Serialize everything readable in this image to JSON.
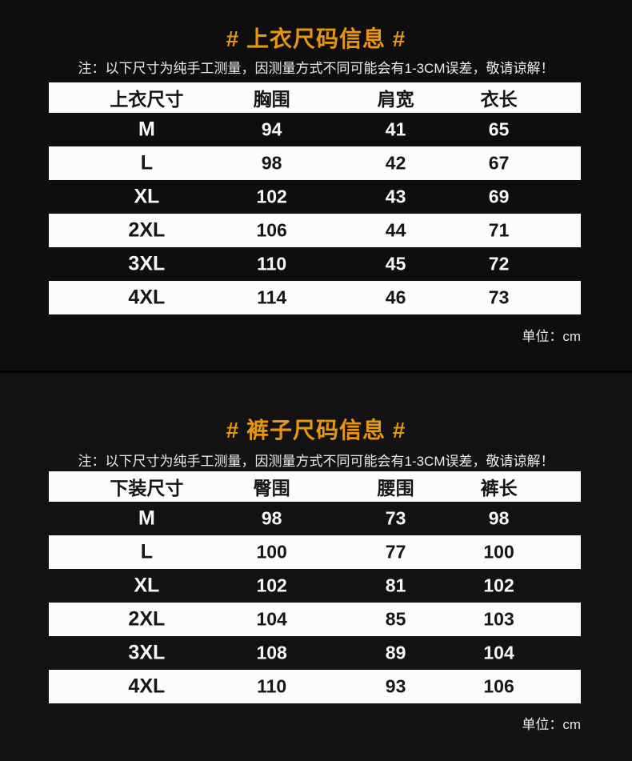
{
  "colors": {
    "background_top": "#0e0e0e",
    "background_bottom": "#121212",
    "accent_orange": "#e6970e",
    "row_light": "#fcfcfc"
  },
  "top_section": {
    "title": "# 上衣尺码信息 #",
    "note": "注：以下尺寸为纯手工测量，因测量方式不同可能会有1-3CM误差，敬请谅解！",
    "unit_label": "单位：cm",
    "table": {
      "headers": [
        "上衣尺寸",
        "胸围",
        "肩宽",
        "衣长"
      ],
      "rows": [
        [
          "M",
          "94",
          "41",
          "65"
        ],
        [
          "L",
          "98",
          "42",
          "67"
        ],
        [
          "XL",
          "102",
          "43",
          "69"
        ],
        [
          "2XL",
          "106",
          "44",
          "71"
        ],
        [
          "3XL",
          "110",
          "45",
          "72"
        ],
        [
          "4XL",
          "114",
          "46",
          "73"
        ]
      ]
    }
  },
  "bottom_section": {
    "title": "# 裤子尺码信息 #",
    "note": "注：以下尺寸为纯手工测量，因测量方式不同可能会有1-3CM误差，敬请谅解！",
    "unit_label": "单位：cm",
    "table": {
      "headers": [
        "下装尺寸",
        "臀围",
        "腰围",
        "裤长"
      ],
      "rows": [
        [
          "M",
          "98",
          "73",
          "98"
        ],
        [
          "L",
          "100",
          "77",
          "100"
        ],
        [
          "XL",
          "102",
          "81",
          "102"
        ],
        [
          "2XL",
          "104",
          "85",
          "103"
        ],
        [
          "3XL",
          "108",
          "89",
          "104"
        ],
        [
          "4XL",
          "110",
          "93",
          "106"
        ]
      ]
    }
  }
}
